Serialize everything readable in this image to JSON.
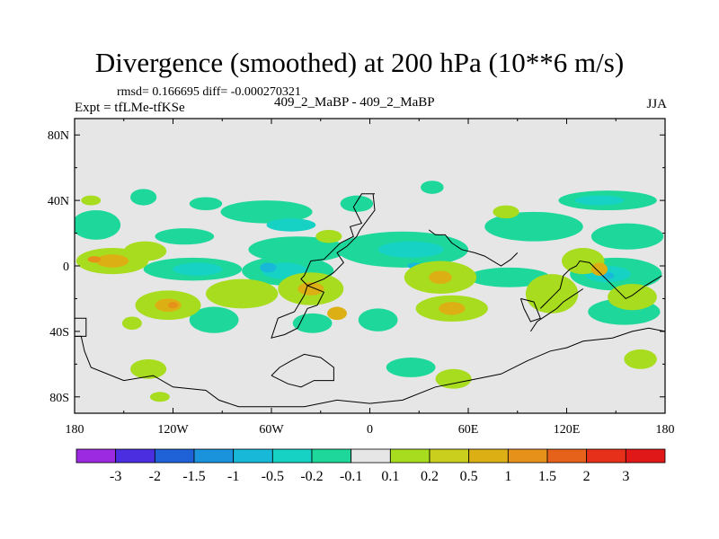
{
  "title": "Divergence (smoothed) at 200 hPa (10**6 m/s)",
  "stats": "rmsd= 0.166695 diff= -0.000270321",
  "experiment": "Expt = tfLMe-tfKSe",
  "comparison": "409_2_MaBP - 409_2_MaBP",
  "season": "JJA",
  "chart_data": {
    "type": "heatmap",
    "title": "Divergence (smoothed) at 200 hPa (10**6 m/s)",
    "x_ticks": [
      {
        "value": -180,
        "label": "180"
      },
      {
        "value": -120,
        "label": "120W"
      },
      {
        "value": -60,
        "label": "60W"
      },
      {
        "value": 0,
        "label": "0"
      },
      {
        "value": 60,
        "label": "60E"
      },
      {
        "value": 120,
        "label": "120E"
      },
      {
        "value": 180,
        "label": "180"
      }
    ],
    "y_ticks": [
      {
        "value": 80,
        "label": "80N"
      },
      {
        "value": 40,
        "label": "40N"
      },
      {
        "value": 0,
        "label": "0"
      },
      {
        "value": -40,
        "label": "40S"
      },
      {
        "value": -80,
        "label": "80S"
      }
    ],
    "xlim": [
      -180,
      180
    ],
    "ylim": [
      -90,
      90
    ],
    "colorbar": {
      "labels": [
        "-3",
        "-2",
        "-1.5",
        "-1",
        "-0.5",
        "-0.2",
        "-0.1",
        "0.1",
        "0.2",
        "0.5",
        "1",
        "1.5",
        "2",
        "3"
      ],
      "colors": [
        "#9b2ae0",
        "#4b2ee0",
        "#1f62d8",
        "#1a92dc",
        "#17b8d8",
        "#16d2c4",
        "#1dd89a",
        "#e6e6e6",
        "#a8dc1e",
        "#c9cf1c",
        "#dcb014",
        "#e6921a",
        "#e6621a",
        "#e6301a",
        "#e01818"
      ]
    },
    "features": [
      {
        "lon": -138,
        "lat": 42,
        "rx": 8,
        "ry": 5,
        "level": "-0.1"
      },
      {
        "lon": -100,
        "lat": 38,
        "rx": 10,
        "ry": 4,
        "level": "-0.1"
      },
      {
        "lon": 38,
        "lat": 48,
        "rx": 7,
        "ry": 4,
        "level": "-0.1"
      },
      {
        "lon": -63,
        "lat": 33,
        "rx": 28,
        "ry": 7,
        "level": "-0.1"
      },
      {
        "lon": -8,
        "lat": 38,
        "rx": 10,
        "ry": 5,
        "level": "-0.1"
      },
      {
        "lon": 145,
        "lat": 40,
        "rx": 30,
        "ry": 6,
        "level": "-0.1"
      },
      {
        "lon": 20,
        "lat": 10,
        "rx": 40,
        "ry": 11,
        "level": "-0.1"
      },
      {
        "lon": 100,
        "lat": 24,
        "rx": 30,
        "ry": 9,
        "level": "-0.1"
      },
      {
        "lon": 157,
        "lat": 18,
        "rx": 22,
        "ry": 8,
        "level": "-0.1"
      },
      {
        "lon": -167,
        "lat": 25,
        "rx": 15,
        "ry": 9,
        "level": "-0.1"
      },
      {
        "lon": -113,
        "lat": 18,
        "rx": 18,
        "ry": 5,
        "level": "-0.1"
      },
      {
        "lon": -44,
        "lat": 10,
        "rx": 30,
        "ry": 8,
        "level": "-0.1"
      },
      {
        "lon": -108,
        "lat": -2,
        "rx": 30,
        "ry": 7,
        "level": "-0.1"
      },
      {
        "lon": -50,
        "lat": -3,
        "rx": 28,
        "ry": 9,
        "level": "-0.1"
      },
      {
        "lon": 150,
        "lat": -5,
        "rx": 28,
        "ry": 10,
        "level": "-0.1"
      },
      {
        "lon": 85,
        "lat": -7,
        "rx": 25,
        "ry": 6,
        "level": "-0.1"
      },
      {
        "lon": -95,
        "lat": -33,
        "rx": 15,
        "ry": 8,
        "level": "-0.1"
      },
      {
        "lon": -35,
        "lat": -35,
        "rx": 12,
        "ry": 6,
        "level": "-0.1"
      },
      {
        "lon": 5,
        "lat": -33,
        "rx": 12,
        "ry": 7,
        "level": "-0.1"
      },
      {
        "lon": 155,
        "lat": -28,
        "rx": 22,
        "ry": 8,
        "level": "-0.1"
      },
      {
        "lon": 25,
        "lat": -62,
        "rx": 15,
        "ry": 6,
        "level": "-0.1"
      },
      {
        "lon": -48,
        "lat": 25,
        "rx": 15,
        "ry": 4,
        "level": "-0.2"
      },
      {
        "lon": 140,
        "lat": 40,
        "rx": 15,
        "ry": 3,
        "level": "-0.2"
      },
      {
        "lon": -105,
        "lat": -2,
        "rx": 15,
        "ry": 4,
        "level": "-0.2"
      },
      {
        "lon": -52,
        "lat": -3,
        "rx": 14,
        "ry": 5,
        "level": "-0.2"
      },
      {
        "lon": 145,
        "lat": -5,
        "rx": 14,
        "ry": 5,
        "level": "-0.2"
      },
      {
        "lon": 25,
        "lat": 10,
        "rx": 20,
        "ry": 5,
        "level": "-0.2"
      },
      {
        "lon": -62,
        "lat": -1,
        "rx": 5,
        "ry": 3,
        "level": "-0.5"
      },
      {
        "lon": 28,
        "lat": 0,
        "rx": 5,
        "ry": 2,
        "level": "-0.5"
      },
      {
        "lon": 145,
        "lat": -6,
        "rx": 4,
        "ry": 2,
        "level": "-0.5"
      },
      {
        "lon": -170,
        "lat": 40,
        "rx": 6,
        "ry": 3,
        "level": "0.1"
      },
      {
        "lon": -157,
        "lat": 3,
        "rx": 22,
        "ry": 8,
        "level": "0.1"
      },
      {
        "lon": -137,
        "lat": 9,
        "rx": 13,
        "ry": 6,
        "level": "0.1"
      },
      {
        "lon": 43,
        "lat": -7,
        "rx": 22,
        "ry": 10,
        "level": "0.1"
      },
      {
        "lon": -123,
        "lat": -24,
        "rx": 20,
        "ry": 9,
        "level": "0.1"
      },
      {
        "lon": -78,
        "lat": -17,
        "rx": 22,
        "ry": 9,
        "level": "0.1"
      },
      {
        "lon": -36,
        "lat": -14,
        "rx": 20,
        "ry": 10,
        "level": "0.1"
      },
      {
        "lon": 50,
        "lat": -26,
        "rx": 22,
        "ry": 8,
        "level": "0.1"
      },
      {
        "lon": 111,
        "lat": -17,
        "rx": 16,
        "ry": 12,
        "level": "0.1"
      },
      {
        "lon": 160,
        "lat": -19,
        "rx": 15,
        "ry": 8,
        "level": "0.1"
      },
      {
        "lon": 130,
        "lat": 3,
        "rx": 13,
        "ry": 8,
        "level": "0.1"
      },
      {
        "lon": -25,
        "lat": 18,
        "rx": 8,
        "ry": 4,
        "level": "0.1"
      },
      {
        "lon": 83,
        "lat": 33,
        "rx": 8,
        "ry": 4,
        "level": "0.1"
      },
      {
        "lon": -135,
        "lat": -63,
        "rx": 11,
        "ry": 6,
        "level": "0.1"
      },
      {
        "lon": 51,
        "lat": -69,
        "rx": 11,
        "ry": 6,
        "level": "0.1"
      },
      {
        "lon": 165,
        "lat": -57,
        "rx": 10,
        "ry": 6,
        "level": "0.1"
      },
      {
        "lon": -145,
        "lat": -35,
        "rx": 6,
        "ry": 4,
        "level": "0.1"
      },
      {
        "lon": -128,
        "lat": -80,
        "rx": 6,
        "ry": 3,
        "level": "0.1"
      },
      {
        "lon": -157,
        "lat": 3,
        "rx": 10,
        "ry": 4,
        "level": "0.5"
      },
      {
        "lon": -123,
        "lat": -24,
        "rx": 8,
        "ry": 4,
        "level": "0.5"
      },
      {
        "lon": -36,
        "lat": -14,
        "rx": 8,
        "ry": 4,
        "level": "0.5"
      },
      {
        "lon": 43,
        "lat": -7,
        "rx": 7,
        "ry": 4,
        "level": "0.5"
      },
      {
        "lon": 50,
        "lat": -26,
        "rx": 8,
        "ry": 4,
        "level": "0.5"
      },
      {
        "lon": -20,
        "lat": -29,
        "rx": 6,
        "ry": 4,
        "level": "0.5"
      },
      {
        "lon": 140,
        "lat": -2,
        "rx": 5,
        "ry": 4,
        "level": "0.5"
      },
      {
        "lon": -168,
        "lat": 4,
        "rx": 4,
        "ry": 2,
        "level": "1"
      },
      {
        "lon": -120,
        "lat": -24,
        "rx": 3,
        "ry": 2,
        "level": "1"
      }
    ],
    "coastlines": [
      {
        "name": "north-america",
        "points": [
          [
            3,
            44
          ],
          [
            -5,
            44
          ],
          [
            -10,
            36
          ],
          [
            -5,
            26
          ],
          [
            -12,
            24
          ],
          [
            -10,
            18
          ],
          [
            -18,
            14
          ],
          [
            -28,
            4
          ],
          [
            -36,
            3
          ],
          [
            -40,
            -6
          ],
          [
            -42,
            -8
          ],
          [
            -38,
            -12
          ],
          [
            -28,
            -8
          ],
          [
            -22,
            -4
          ],
          [
            -16,
            2
          ],
          [
            -20,
            8
          ],
          [
            -14,
            12
          ],
          [
            -8,
            18
          ],
          [
            -6,
            22
          ],
          [
            0,
            30
          ],
          [
            3,
            34
          ],
          [
            2,
            44
          ]
        ]
      },
      {
        "name": "south-america",
        "points": [
          [
            -38,
            -12
          ],
          [
            -28,
            -16
          ],
          [
            -32,
            -24
          ],
          [
            -38,
            -26
          ],
          [
            -44,
            -38
          ],
          [
            -52,
            -42
          ],
          [
            -60,
            -44
          ],
          [
            -56,
            -32
          ],
          [
            -46,
            -28
          ],
          [
            -40,
            -18
          ],
          [
            -38,
            -12
          ]
        ]
      },
      {
        "name": "africa-europe",
        "points": [
          [
            36,
            22
          ],
          [
            40,
            19
          ],
          [
            46,
            19
          ],
          [
            50,
            14
          ],
          [
            56,
            10
          ],
          [
            64,
            8
          ],
          [
            70,
            6
          ],
          [
            80,
            0
          ],
          [
            86,
            4
          ],
          [
            90,
            8
          ]
        ]
      },
      {
        "name": "asia-island-arc",
        "points": [
          [
            104,
            -26
          ],
          [
            108,
            -22
          ],
          [
            112,
            -18
          ],
          [
            116,
            -14
          ],
          [
            118,
            -6
          ],
          [
            122,
            -2
          ],
          [
            126,
            0
          ],
          [
            128,
            3
          ],
          [
            134,
            2
          ],
          [
            140,
            -4
          ],
          [
            146,
            -10
          ],
          [
            152,
            -16
          ],
          [
            156,
            -20
          ],
          [
            160,
            -18
          ],
          [
            168,
            -12
          ],
          [
            178,
            -6
          ]
        ]
      },
      {
        "name": "australia-coast",
        "points": [
          [
            98,
            -40
          ],
          [
            102,
            -34
          ],
          [
            108,
            -30
          ],
          [
            114,
            -26
          ],
          [
            118,
            -22
          ],
          [
            124,
            -18
          ],
          [
            130,
            -14
          ]
        ]
      },
      {
        "name": "antarctica",
        "points": [
          [
            -180,
            -32
          ],
          [
            -173,
            -32
          ],
          [
            -173,
            -43
          ],
          [
            -180,
            -43
          ]
        ]
      },
      {
        "name": "antarctica-main",
        "points": [
          [
            -180,
            -43
          ],
          [
            -176,
            -43
          ],
          [
            -174,
            -52
          ],
          [
            -170,
            -62
          ],
          [
            -150,
            -70
          ],
          [
            -132,
            -67
          ],
          [
            -120,
            -74
          ],
          [
            -100,
            -76
          ],
          [
            -92,
            -82
          ],
          [
            -80,
            -86
          ],
          [
            -60,
            -86
          ],
          [
            -40,
            -86
          ],
          [
            -20,
            -82
          ],
          [
            0,
            -84
          ],
          [
            20,
            -82
          ],
          [
            40,
            -74
          ],
          [
            60,
            -70
          ],
          [
            80,
            -66
          ],
          [
            96,
            -58
          ],
          [
            110,
            -52
          ],
          [
            120,
            -50
          ],
          [
            130,
            -46
          ],
          [
            148,
            -44
          ],
          [
            160,
            -40
          ],
          [
            170,
            -38
          ],
          [
            180,
            -40
          ]
        ]
      },
      {
        "name": "antarctic-shelf",
        "points": [
          [
            -60,
            -67
          ],
          [
            -55,
            -62
          ],
          [
            -48,
            -58
          ],
          [
            -40,
            -54
          ],
          [
            -30,
            -56
          ],
          [
            -22,
            -62
          ],
          [
            -22,
            -70
          ],
          [
            -34,
            -70
          ],
          [
            -42,
            -74
          ],
          [
            -50,
            -72
          ],
          [
            -60,
            -67
          ]
        ]
      },
      {
        "name": "madagascar",
        "points": [
          [
            92,
            -20
          ],
          [
            94,
            -26
          ],
          [
            98,
            -34
          ],
          [
            104,
            -32
          ],
          [
            100,
            -22
          ],
          [
            92,
            -20
          ]
        ]
      }
    ]
  }
}
